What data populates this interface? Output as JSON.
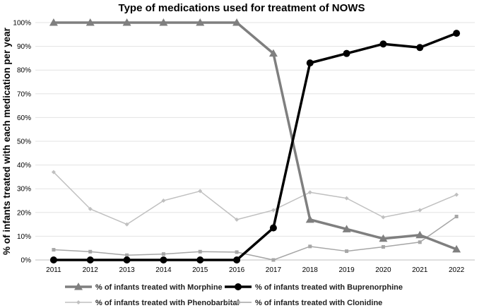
{
  "chart_data": {
    "type": "line",
    "title": "Type of medications used for treatment of NOWS",
    "xlabel": "",
    "ylabel": "% of infants treated with each medication per year",
    "ylim": [
      0,
      100
    ],
    "yticks": [
      "0%",
      "10%",
      "20%",
      "30%",
      "40%",
      "50%",
      "60%",
      "70%",
      "80%",
      "90%",
      "100%"
    ],
    "categories": [
      "2011",
      "2012",
      "2013",
      "2014",
      "2015",
      "2016",
      "2017",
      "2018",
      "2019",
      "2020",
      "2021",
      "2022"
    ],
    "grid": true,
    "legend_position": "bottom",
    "series": [
      {
        "name": "% of infants treated with Morphine",
        "values": [
          100,
          100,
          100,
          100,
          100,
          100,
          87,
          17,
          13,
          9,
          10.5,
          4.5
        ],
        "color": "#7f7f7f",
        "marker": "triangle"
      },
      {
        "name": "% of infants treated with Buprenorphine",
        "values": [
          0,
          0,
          0,
          0,
          0,
          0,
          13.5,
          83,
          87,
          91,
          89.5,
          95.5
        ],
        "color": "#000000",
        "marker": "circle"
      },
      {
        "name": "% of infants treated with Phenobarbital",
        "values": [
          37,
          21.5,
          15,
          25,
          29,
          17,
          21,
          28.5,
          26,
          18,
          21,
          27.5
        ],
        "color": "#c0c0c0",
        "marker": "diamond"
      },
      {
        "name": "% of infants treated with Clonidine",
        "values": [
          4.3,
          3.5,
          2,
          2.5,
          3.5,
          3.3,
          0,
          5.7,
          3.7,
          5.5,
          7.5,
          18.3
        ],
        "color": "#a6a6a6",
        "marker": "square"
      }
    ]
  }
}
